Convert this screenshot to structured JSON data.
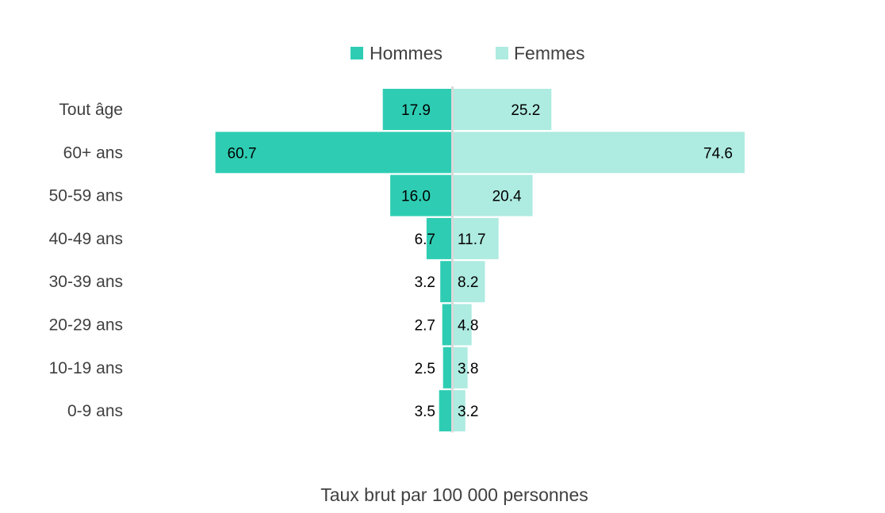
{
  "chart_data": {
    "type": "bar",
    "orientation": "horizontal-diverging",
    "categories": [
      "Tout âge",
      "60+ ans",
      "50-59 ans",
      "40-49 ans",
      "30-39 ans",
      "20-29 ans",
      "10-19 ans",
      "0-9 ans"
    ],
    "series": [
      {
        "name": "Hommes",
        "color": "#2ecdb3",
        "values": [
          17.9,
          60.7,
          16.0,
          6.7,
          3.2,
          2.7,
          2.5,
          3.5
        ],
        "labels": [
          "17.9",
          "60.7",
          "16.0",
          "6.7",
          "3.2",
          "2.7",
          "2.5",
          "3.5"
        ]
      },
      {
        "name": "Femmes",
        "color": "#aeebe1",
        "values": [
          25.2,
          74.6,
          20.4,
          11.7,
          8.2,
          4.8,
          3.8,
          3.2
        ],
        "labels": [
          "25.2",
          "74.6",
          "20.4",
          "11.7",
          "8.2",
          "4.8",
          "3.8",
          "3.2"
        ]
      }
    ],
    "xlabel": "Taux brut par 100 000 personnes",
    "ylabel": "",
    "legend": "top-center",
    "grid": false
  }
}
